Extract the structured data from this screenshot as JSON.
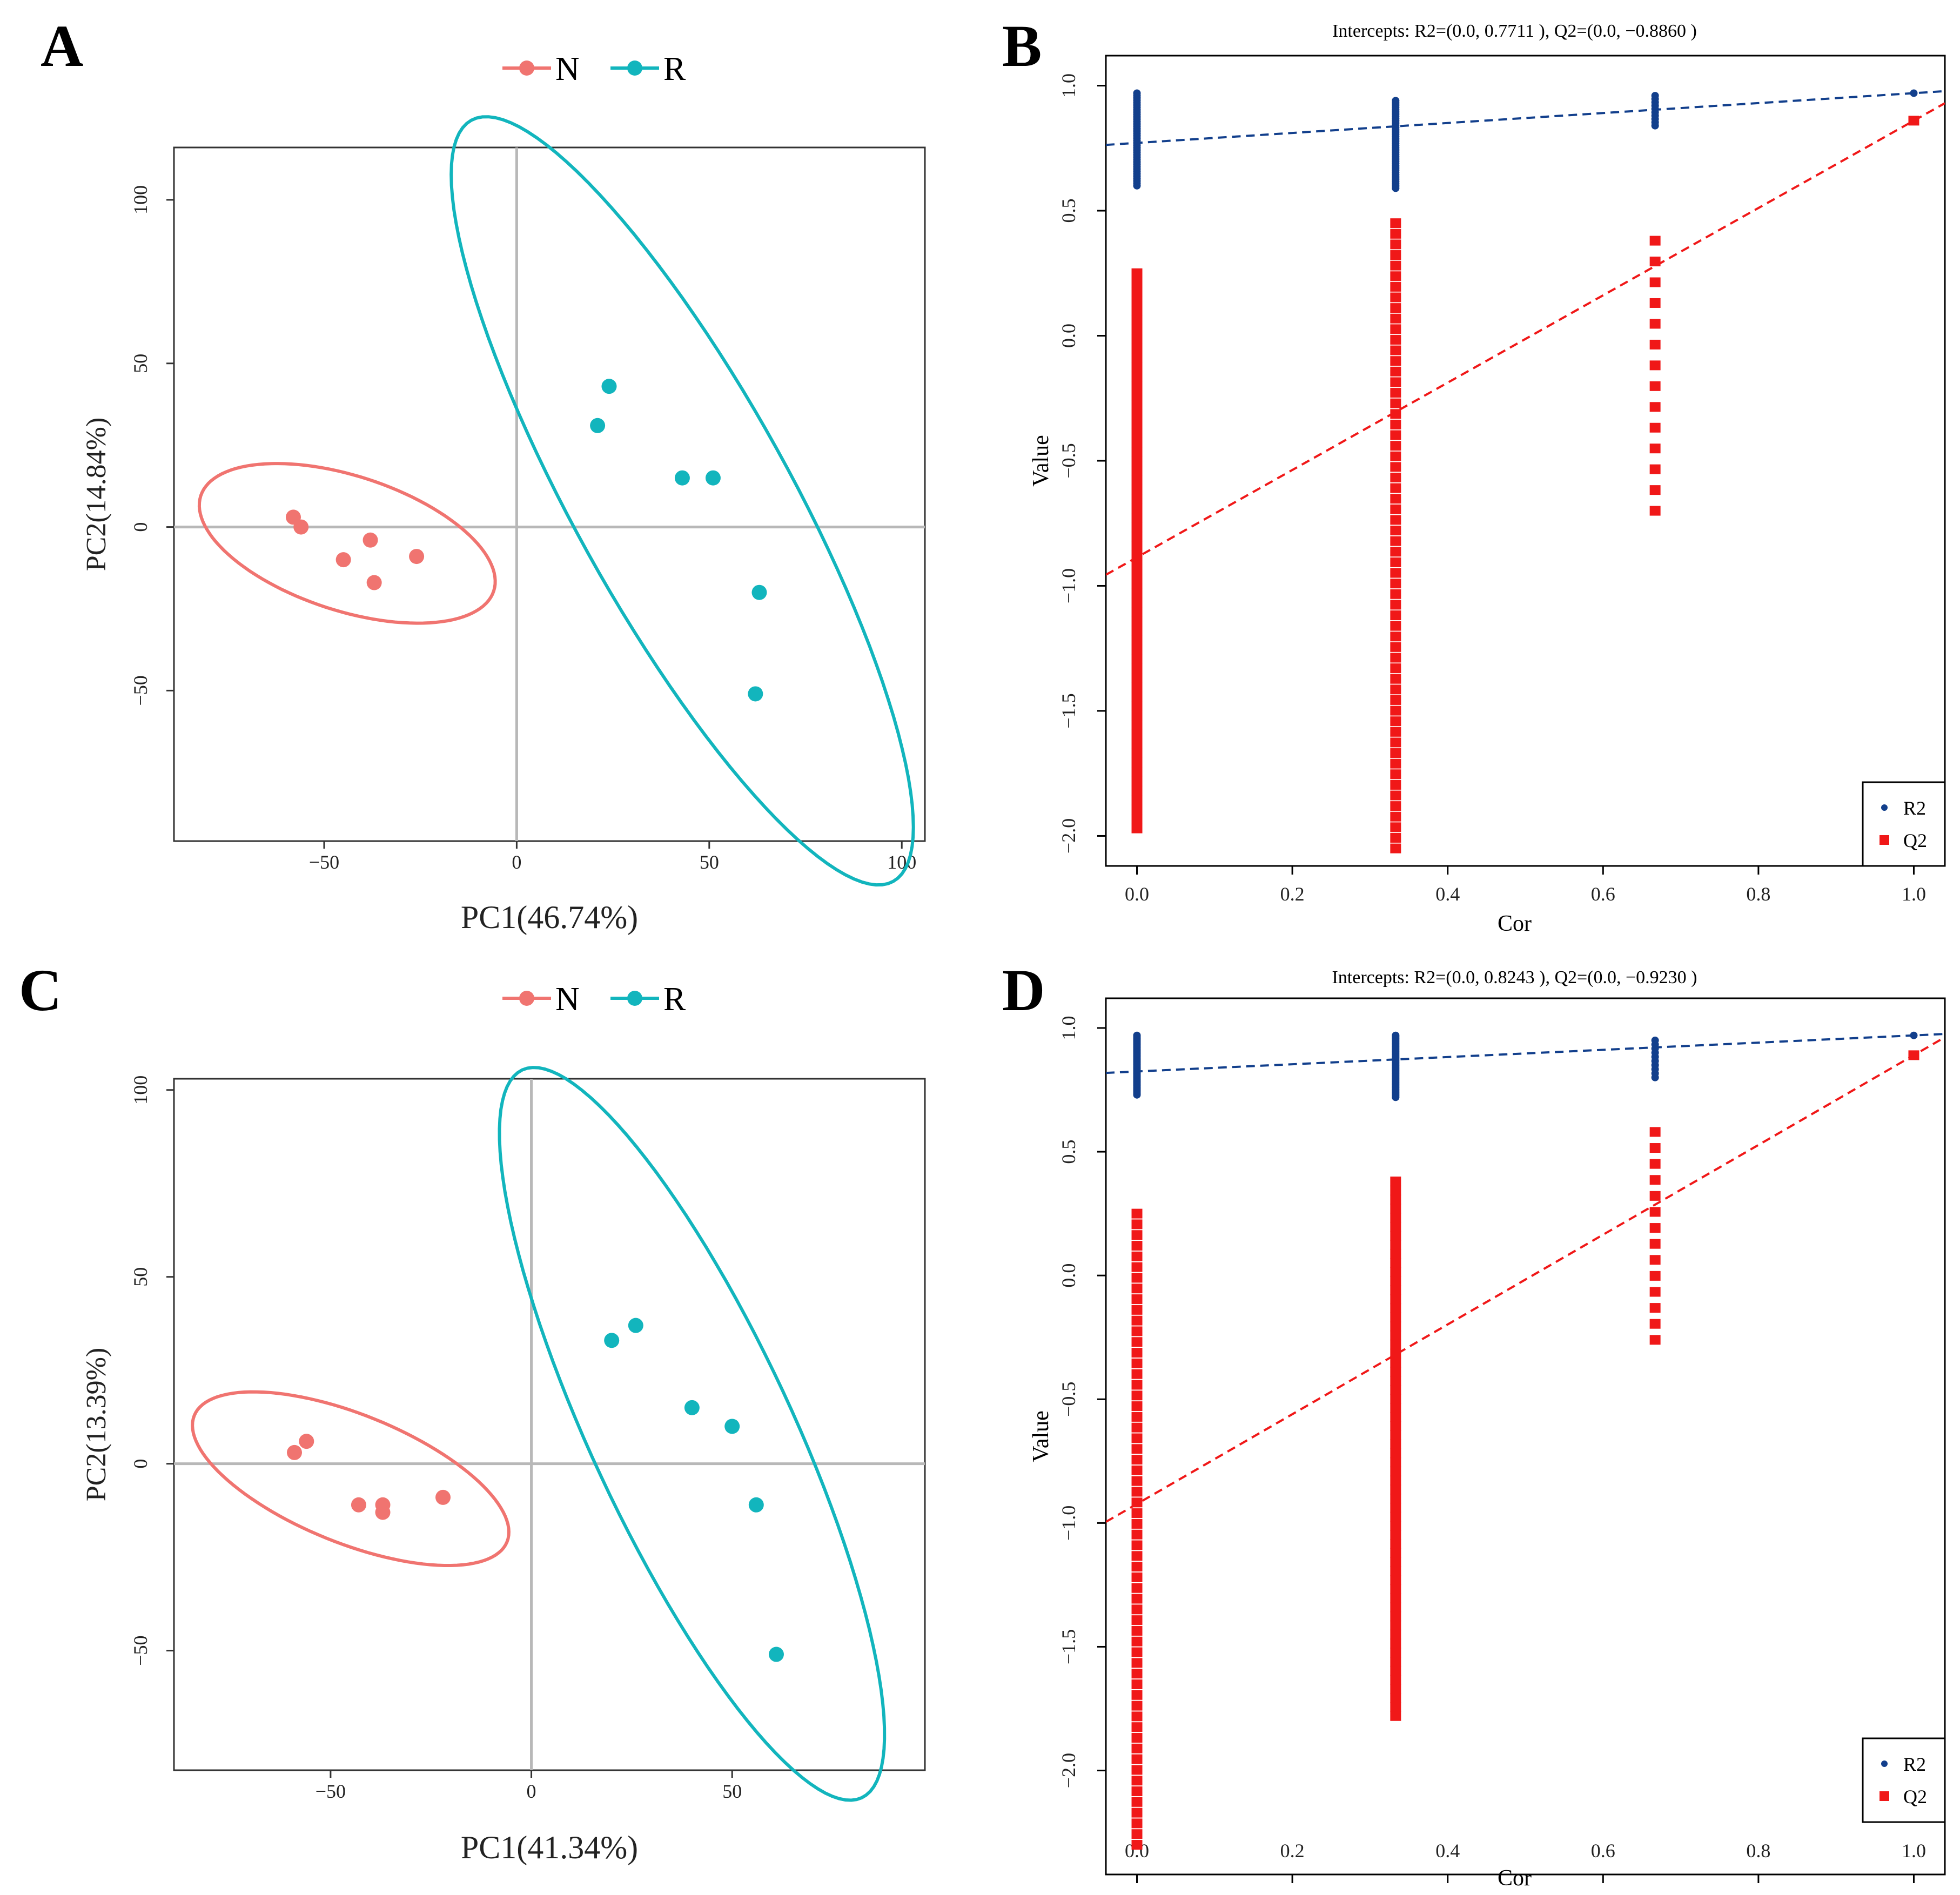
{
  "panel_labels": [
    "A",
    "B",
    "C",
    "D"
  ],
  "colors": {
    "N": "#F07470",
    "R": "#12B5BD",
    "R2": "#123F8C",
    "Q2": "#F01818",
    "refline": "#B8B8B8",
    "axis": "#000000",
    "tick_text": "#222222"
  },
  "chart_data": [
    {
      "id": "A",
      "type": "scatter",
      "title": "",
      "xlabel": "PC1(46.74%)",
      "ylabel": "PC2(14.84%)",
      "xlim": [
        -89,
        106
      ],
      "ylim": [
        -96,
        116
      ],
      "xticks": [
        -50,
        0,
        50,
        100
      ],
      "yticks": [
        -50,
        0,
        50,
        100
      ],
      "xtick_labels": [
        "−50",
        "0",
        "50",
        "100"
      ],
      "ytick_labels": [
        "−50",
        "0",
        "50",
        "100"
      ],
      "legend": [
        "N",
        "R"
      ],
      "series": [
        {
          "name": "N",
          "points": [
            [
              -58,
              3
            ],
            [
              -56,
              0
            ],
            [
              -45,
              -10
            ],
            [
              -38,
              -4
            ],
            [
              -37,
              -17
            ],
            [
              -26,
              -9
            ]
          ]
        },
        {
          "name": "R",
          "points": [
            [
              21,
              31
            ],
            [
              24,
              43
            ],
            [
              43,
              15
            ],
            [
              51,
              15
            ],
            [
              63,
              -20
            ],
            [
              62,
              -51
            ]
          ]
        }
      ],
      "ellipses": [
        {
          "group": "N",
          "center": [
            -44,
            -5
          ],
          "semi_major": 40,
          "semi_minor": 17.5,
          "angle_deg": -18
        },
        {
          "group": "R",
          "center": [
            43,
            8
          ],
          "semi_major": 113,
          "semi_minor": 28,
          "angle_deg": -61
        }
      ]
    },
    {
      "id": "B",
      "type": "scatter",
      "title": "Intercepts: R2=(0.0, 0.7711 ), Q2=(0.0, −0.8860 )",
      "xlabel": "Cor",
      "ylabel": "Value",
      "xlim": [
        -0.04,
        1.04
      ],
      "ylim": [
        -2.12,
        1.12
      ],
      "xticks": [
        0.0,
        0.2,
        0.4,
        0.6,
        0.8,
        1.0
      ],
      "yticks": [
        -2.0,
        -1.5,
        -1.0,
        -0.5,
        0.0,
        0.5,
        1.0
      ],
      "xtick_labels": [
        "0.0",
        "0.2",
        "0.4",
        "0.6",
        "0.8",
        "1.0"
      ],
      "ytick_labels": [
        "−2.0",
        "−1.5",
        "−1.0",
        "−0.5",
        "0.0",
        "0.5",
        "1.0"
      ],
      "legend": [
        "R2",
        "Q2"
      ],
      "r2_intercept": 0.7711,
      "q2_intercept": -0.886,
      "r2_final": 0.97,
      "q2_final": 0.86,
      "series": [
        {
          "name": "R2",
          "x": [
            0.0,
            0.333,
            0.667,
            1.0
          ],
          "ranges": [
            [
              0.6,
              0.97
            ],
            [
              0.59,
              0.94
            ],
            [
              0.84,
              0.96
            ],
            [
              0.97,
              0.97
            ]
          ]
        },
        {
          "name": "Q2",
          "x": [
            0.0,
            0.333,
            0.667,
            1.0
          ],
          "ranges": [
            [
              -1.97,
              0.25
            ],
            [
              -2.05,
              0.45
            ],
            [
              -0.7,
              0.38
            ],
            [
              0.86,
              0.86
            ]
          ]
        }
      ]
    },
    {
      "id": "C",
      "type": "scatter",
      "title": "",
      "xlabel": "PC1(41.34%)",
      "ylabel": "PC2(13.39%)",
      "xlim": [
        -89,
        98
      ],
      "ylim": [
        -82,
        103
      ],
      "xticks": [
        -50,
        0,
        50
      ],
      "yticks": [
        -50,
        0,
        50,
        100
      ],
      "xtick_labels": [
        "−50",
        "0",
        "50"
      ],
      "ytick_labels": [
        "−50",
        "0",
        "50",
        "100"
      ],
      "legend": [
        "N",
        "R"
      ],
      "series": [
        {
          "name": "N",
          "points": [
            [
              -59,
              3
            ],
            [
              -56,
              6
            ],
            [
              -43,
              -11
            ],
            [
              -37,
              -11
            ],
            [
              -37,
              -13
            ],
            [
              -22,
              -9
            ]
          ]
        },
        {
          "name": "R",
          "points": [
            [
              20,
              33
            ],
            [
              26,
              37
            ],
            [
              40,
              15
            ],
            [
              50,
              10
            ],
            [
              56,
              -11
            ],
            [
              61,
              -51
            ]
          ]
        }
      ],
      "ellipses": [
        {
          "group": "N",
          "center": [
            -45,
            -4
          ],
          "semi_major": 42,
          "semi_minor": 16,
          "angle_deg": -22
        },
        {
          "group": "R",
          "center": [
            40,
            8
          ],
          "semi_major": 100,
          "semi_minor": 25,
          "angle_deg": -65
        }
      ]
    },
    {
      "id": "D",
      "type": "scatter",
      "title": "Intercepts: R2=(0.0, 0.8243 ), Q2=(0.0, −0.9230 )",
      "xlabel": "Cor",
      "ylabel": "Value",
      "xlim": [
        -0.04,
        1.04
      ],
      "ylim": [
        -2.42,
        1.12
      ],
      "xticks": [
        0.0,
        0.2,
        0.4,
        0.6,
        0.8,
        1.0
      ],
      "yticks": [
        -2.0,
        -1.5,
        -1.0,
        -0.5,
        0.0,
        0.5,
        1.0
      ],
      "xtick_labels": [
        "0.0",
        "0.2",
        "0.4",
        "0.6",
        "0.8",
        "1.0"
      ],
      "ytick_labels": [
        "−2.0",
        "−1.5",
        "−1.0",
        "−0.5",
        "0.0",
        "0.5",
        "1.0"
      ],
      "legend": [
        "R2",
        "Q2"
      ],
      "r2_intercept": 0.8243,
      "q2_intercept": -0.923,
      "r2_final": 0.97,
      "q2_final": 0.89,
      "series": [
        {
          "name": "R2",
          "x": [
            0.0,
            0.333,
            0.667,
            1.0
          ],
          "ranges": [
            [
              0.73,
              0.97
            ],
            [
              0.72,
              0.97
            ],
            [
              0.8,
              0.95
            ],
            [
              0.97,
              0.97
            ]
          ]
        },
        {
          "name": "Q2",
          "x": [
            0.0,
            0.333,
            0.667,
            1.0
          ],
          "ranges": [
            [
              -2.3,
              0.25
            ],
            [
              -1.78,
              0.38
            ],
            [
              -0.26,
              0.58
            ],
            [
              0.89,
              0.89
            ]
          ]
        }
      ]
    }
  ]
}
